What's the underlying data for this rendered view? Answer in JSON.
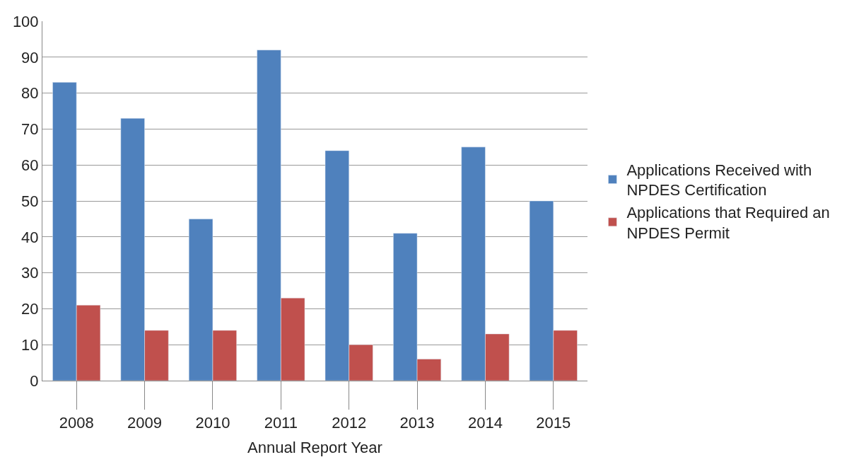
{
  "chart_data": {
    "type": "bar",
    "xlabel": "Annual Report Year",
    "categories": [
      "2008",
      "2009",
      "2010",
      "2011",
      "2012",
      "2013",
      "2014",
      "2015"
    ],
    "series": [
      {
        "name": "Applications Received with NPDES Certification",
        "color": "#4f81bd",
        "values": [
          83,
          73,
          45,
          92,
          64,
          41,
          65,
          50
        ]
      },
      {
        "name": "Applications that Required an NPDES Permit",
        "color": "#c0504d",
        "values": [
          21,
          14,
          14,
          23,
          10,
          6,
          13,
          14
        ]
      }
    ],
    "ylim": [
      0,
      100
    ],
    "yticks": [
      0,
      10,
      20,
      30,
      40,
      50,
      60,
      70,
      80,
      90,
      100
    ],
    "grid": "y",
    "legend": "right"
  }
}
